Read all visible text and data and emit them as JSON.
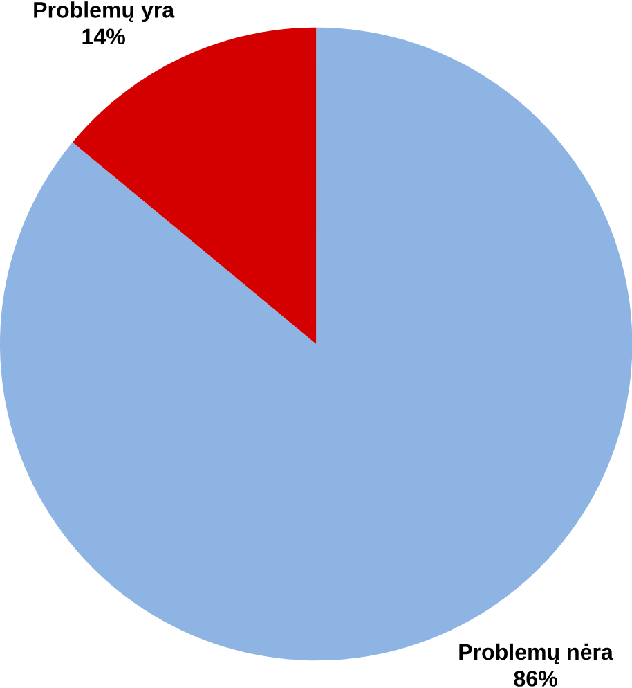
{
  "chart_data": {
    "type": "pie",
    "categories": [
      "Problemų nėra",
      "Problemų yra"
    ],
    "values": [
      86,
      14
    ],
    "colors": [
      "#8db4e2",
      "#d40000"
    ],
    "value_labels": [
      "86%",
      "14%"
    ]
  }
}
